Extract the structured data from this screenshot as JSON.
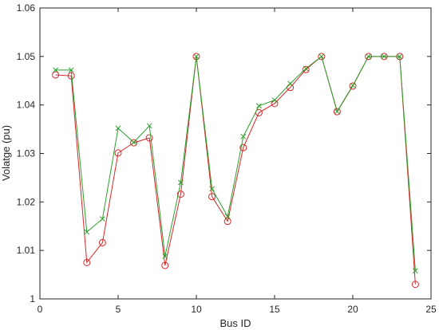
{
  "chart_data": {
    "type": "line",
    "title": "",
    "xlabel": "Bus ID",
    "ylabel": "Volatge (pu)",
    "xlim": [
      0,
      25
    ],
    "ylim": [
      1.0,
      1.06
    ],
    "xticks": [
      "0",
      "5",
      "10",
      "15",
      "20",
      "25"
    ],
    "yticks": [
      "1",
      "1.01",
      "1.02",
      "1.03",
      "1.04",
      "1.05",
      "1.06"
    ],
    "grid": false,
    "legend": "none",
    "x": [
      1,
      2,
      3,
      4,
      5,
      6,
      7,
      8,
      9,
      10,
      11,
      12,
      13,
      14,
      15,
      16,
      17,
      18,
      19,
      20,
      21,
      22,
      23,
      24
    ],
    "series": [
      {
        "marker": "circle",
        "color": "#d62728",
        "values": [
          1.0462,
          1.046,
          1.0075,
          1.0116,
          1.0301,
          1.0322,
          1.0332,
          1.0069,
          1.0216,
          1.05,
          1.0211,
          1.016,
          1.0312,
          1.0384,
          1.0403,
          1.0436,
          1.0473,
          1.05,
          1.0386,
          1.0439,
          1.05,
          1.05,
          1.05,
          1.003
        ]
      },
      {
        "marker": "x",
        "color": "#2ca02c",
        "values": [
          1.0472,
          1.0472,
          1.0138,
          1.0165,
          1.0352,
          1.0323,
          1.0357,
          1.0088,
          1.024,
          1.05,
          1.0227,
          1.017,
          1.0335,
          1.0398,
          1.041,
          1.0444,
          1.0475,
          1.05,
          1.0387,
          1.044,
          1.05,
          1.05,
          1.05,
          1.0058
        ]
      }
    ]
  }
}
